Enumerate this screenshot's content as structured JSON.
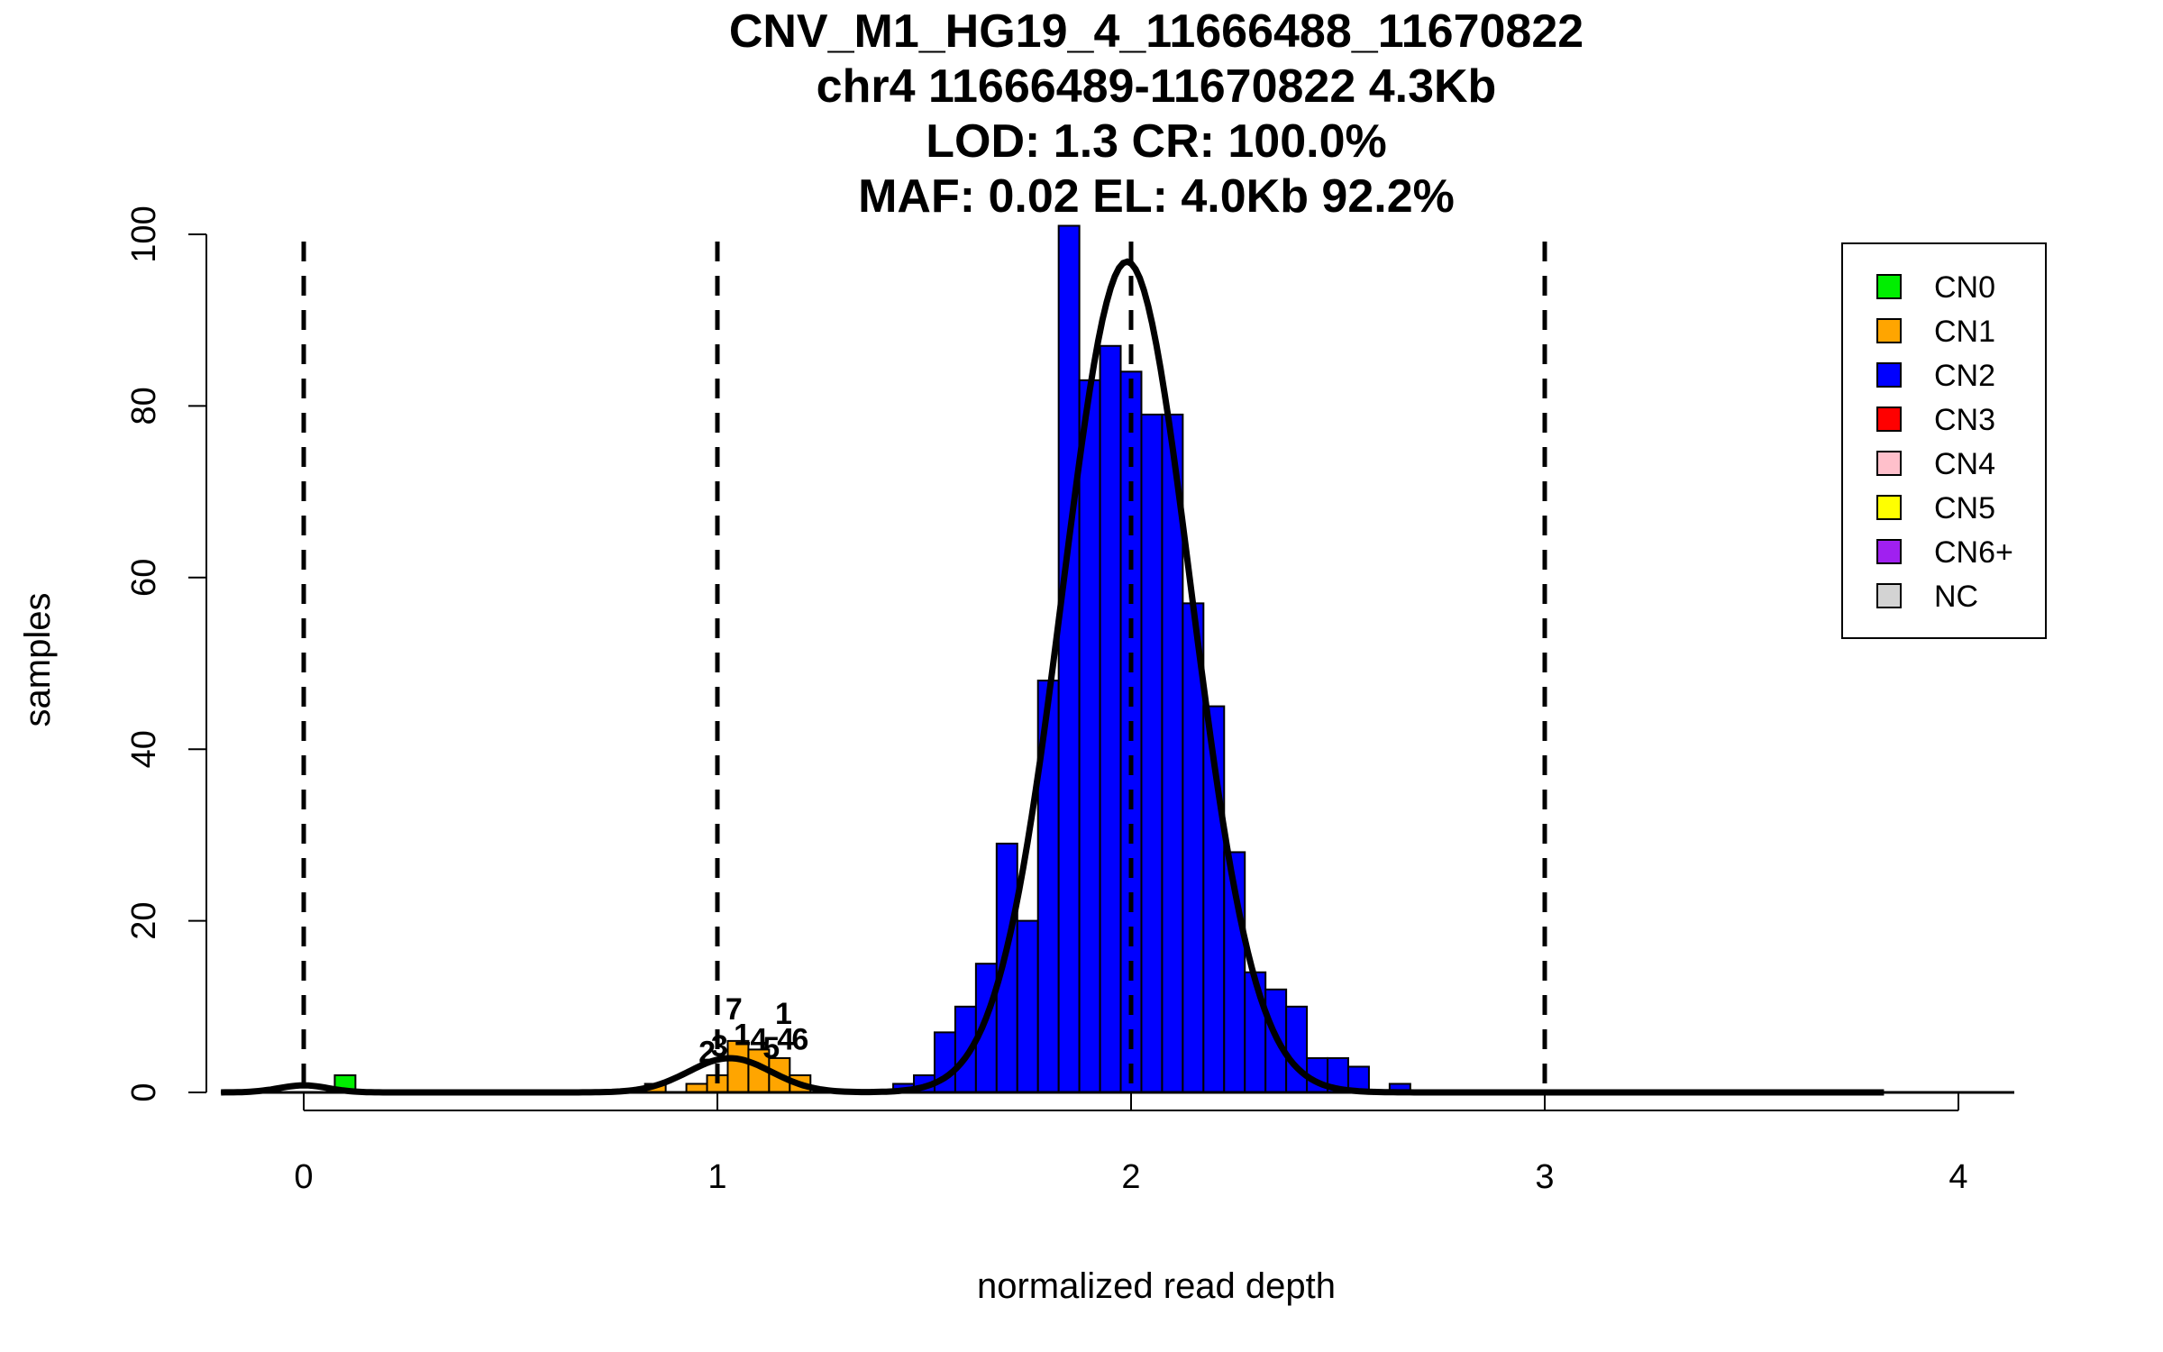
{
  "chart_data": {
    "type": "bar",
    "title_lines": [
      "CNV_M1_HG19_4_11666488_11670822",
      "chr4 11666489-11670822 4.3Kb",
      "LOD: 1.3 CR: 100.0%",
      "MAF: 0.02 EL: 4.0Kb 92.2%"
    ],
    "xlabel": "normalized read depth",
    "ylabel": "samples",
    "xlim": [
      -0.2,
      4.15
    ],
    "ylim": [
      0,
      100
    ],
    "x_ticks": [
      0,
      1,
      2,
      3,
      4
    ],
    "y_ticks": [
      0,
      20,
      40,
      60,
      80,
      100
    ],
    "bin_width": 0.05,
    "dashed_lines_at": [
      0,
      1,
      2,
      3
    ],
    "series": [
      {
        "name": "CN0",
        "color": "#00ee00",
        "bins": [
          {
            "x": 0.1,
            "count": 2
          }
        ]
      },
      {
        "name": "CN1",
        "color": "#ffa500",
        "bins": [
          {
            "x": 0.85,
            "count": 1
          },
          {
            "x": 0.95,
            "count": 1
          },
          {
            "x": 1.0,
            "count": 2
          },
          {
            "x": 1.05,
            "count": 6
          },
          {
            "x": 1.1,
            "count": 5
          },
          {
            "x": 1.15,
            "count": 4
          },
          {
            "x": 1.2,
            "count": 2
          }
        ]
      },
      {
        "name": "CN2",
        "color": "#0000ff",
        "bins": [
          {
            "x": 1.45,
            "count": 1
          },
          {
            "x": 1.5,
            "count": 2
          },
          {
            "x": 1.55,
            "count": 7
          },
          {
            "x": 1.6,
            "count": 10
          },
          {
            "x": 1.65,
            "count": 15
          },
          {
            "x": 1.7,
            "count": 29
          },
          {
            "x": 1.75,
            "count": 20
          },
          {
            "x": 1.8,
            "count": 48
          },
          {
            "x": 1.85,
            "count": 101
          },
          {
            "x": 1.9,
            "count": 83
          },
          {
            "x": 1.95,
            "count": 87
          },
          {
            "x": 2.0,
            "count": 84
          },
          {
            "x": 2.05,
            "count": 79
          },
          {
            "x": 2.1,
            "count": 79
          },
          {
            "x": 2.15,
            "count": 57
          },
          {
            "x": 2.2,
            "count": 45
          },
          {
            "x": 2.25,
            "count": 28
          },
          {
            "x": 2.3,
            "count": 14
          },
          {
            "x": 2.35,
            "count": 12
          },
          {
            "x": 2.4,
            "count": 10
          },
          {
            "x": 2.45,
            "count": 4
          },
          {
            "x": 2.5,
            "count": 4
          },
          {
            "x": 2.55,
            "count": 3
          },
          {
            "x": 2.65,
            "count": 1
          }
        ]
      }
    ],
    "cn1_bar_labels": [
      {
        "x": 0.975,
        "y": 3.5,
        "text": "2"
      },
      {
        "x": 1.005,
        "y": 4.2,
        "text": "3"
      },
      {
        "x": 1.04,
        "y": 8.5,
        "text": "7"
      },
      {
        "x": 1.06,
        "y": 5.5,
        "text": "1"
      },
      {
        "x": 1.1,
        "y": 5.0,
        "text": "4"
      },
      {
        "x": 1.13,
        "y": 4.0,
        "text": "5"
      },
      {
        "x": 1.16,
        "y": 8.0,
        "text": "1"
      },
      {
        "x": 1.165,
        "y": 5.0,
        "text": "4"
      },
      {
        "x": 1.2,
        "y": 5.0,
        "text": "6"
      }
    ],
    "density_curve": {
      "components": [
        {
          "mean": 0.0,
          "sd": 0.06,
          "weight": 0.13
        },
        {
          "mean": 1.03,
          "sd": 0.1,
          "weight": 0.95
        },
        {
          "mean": 1.99,
          "sd": 0.155,
          "weight": 37.6
        }
      ],
      "range": [
        -0.2,
        3.82
      ]
    },
    "legend": {
      "position": "top-right",
      "entries": [
        {
          "label": "CN0",
          "color": "#00ee00"
        },
        {
          "label": "CN1",
          "color": "#ffa500"
        },
        {
          "label": "CN2",
          "color": "#0000ff"
        },
        {
          "label": "CN3",
          "color": "#ff0000"
        },
        {
          "label": "CN4",
          "color": "#ffc0cb"
        },
        {
          "label": "CN5",
          "color": "#ffff00"
        },
        {
          "label": "CN6+",
          "color": "#a020f0"
        },
        {
          "label": "NC",
          "color": "#d3d3d3"
        }
      ]
    }
  }
}
